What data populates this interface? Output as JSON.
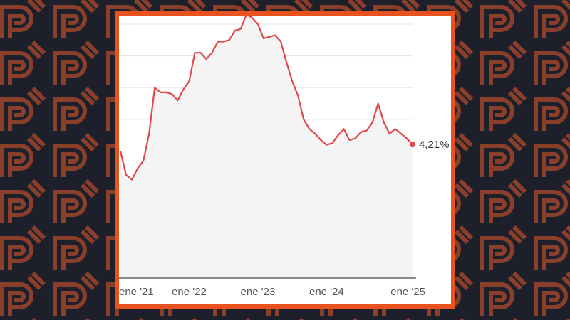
{
  "colors": {
    "background": "#1d1f2b",
    "pattern": "#8a3f2a",
    "frame": "#e8521f",
    "line": "#e0484a",
    "area": "#f4f4f4",
    "grid": "#e6e6e6"
  },
  "chart_data": {
    "type": "line",
    "title": "",
    "xlabel": "",
    "ylabel": "",
    "x_tick_labels": [
      "ene '21",
      "ene '22",
      "ene '23",
      "ene '24",
      "ene '25"
    ],
    "x_tick_positions": [
      0,
      12,
      24,
      36,
      48
    ],
    "xlim": [
      0,
      52
    ],
    "ylim": [
      0,
      8
    ],
    "y_tick_labels_shown": false,
    "grid": true,
    "end_label": "4,21%",
    "series": [
      {
        "values": [
          4.0,
          3.25,
          3.1,
          3.45,
          3.7,
          4.55,
          6.0,
          5.85,
          5.85,
          5.8,
          5.6,
          5.95,
          6.2,
          7.1,
          7.1,
          6.9,
          7.1,
          7.45,
          7.45,
          7.5,
          7.8,
          7.85,
          8.3,
          8.2,
          8.0,
          7.55,
          7.6,
          7.65,
          7.45,
          6.8,
          6.2,
          5.75,
          5.0,
          4.7,
          4.55,
          4.35,
          4.2,
          4.25,
          4.5,
          4.7,
          4.35,
          4.4,
          4.6,
          4.65,
          4.9,
          5.5,
          4.9,
          4.55,
          4.7,
          4.55,
          4.4,
          4.21
        ]
      }
    ]
  }
}
